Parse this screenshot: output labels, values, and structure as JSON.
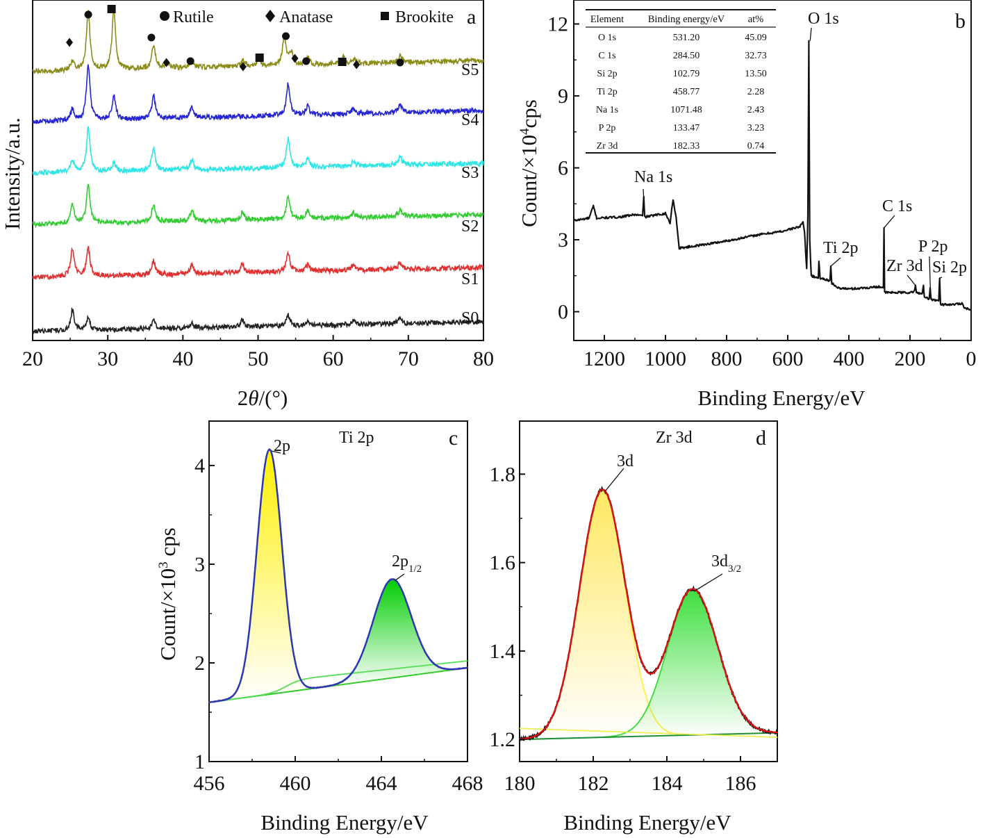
{
  "chart_data": [
    {
      "panel": "a",
      "type": "line",
      "xlabel": "2θ/(°)",
      "ylabel": "Intensity/a.u.",
      "xlim": [
        20,
        80
      ],
      "xticks": [
        20,
        30,
        40,
        50,
        60,
        70,
        80
      ],
      "y_ticks_visible": false,
      "legend": {
        "placement": "top",
        "items": [
          {
            "marker": "circle",
            "label": "Rutile"
          },
          {
            "marker": "diamond",
            "label": "Anatase"
          },
          {
            "marker": "square",
            "label": "Brookite"
          }
        ]
      },
      "series": [
        {
          "name": "S0",
          "color": "#222222",
          "peaks": [
            {
              "x": 25.3,
              "h": 30
            },
            {
              "x": 27.4,
              "h": 18
            },
            {
              "x": 36.1,
              "h": 12
            },
            {
              "x": 41.2,
              "h": 7
            },
            {
              "x": 47.9,
              "h": 11
            },
            {
              "x": 54.0,
              "h": 16
            },
            {
              "x": 56.6,
              "h": 6
            },
            {
              "x": 62.7,
              "h": 6
            },
            {
              "x": 68.9,
              "h": 7
            }
          ]
        },
        {
          "name": "S1",
          "color": "#e03030",
          "peaks": [
            {
              "x": 25.3,
              "h": 40
            },
            {
              "x": 27.4,
              "h": 40
            },
            {
              "x": 36.1,
              "h": 20
            },
            {
              "x": 41.2,
              "h": 13
            },
            {
              "x": 47.9,
              "h": 12
            },
            {
              "x": 54.0,
              "h": 28
            },
            {
              "x": 56.6,
              "h": 10
            },
            {
              "x": 62.7,
              "h": 8
            },
            {
              "x": 68.9,
              "h": 10
            }
          ]
        },
        {
          "name": "S2",
          "color": "#33cc33",
          "peaks": [
            {
              "x": 25.3,
              "h": 28
            },
            {
              "x": 27.4,
              "h": 55
            },
            {
              "x": 36.1,
              "h": 25
            },
            {
              "x": 41.2,
              "h": 15
            },
            {
              "x": 47.9,
              "h": 10
            },
            {
              "x": 54.0,
              "h": 33
            },
            {
              "x": 56.6,
              "h": 11
            },
            {
              "x": 62.7,
              "h": 7
            },
            {
              "x": 68.9,
              "h": 10
            }
          ]
        },
        {
          "name": "S3",
          "color": "#2ee6e6",
          "peaks": [
            {
              "x": 25.3,
              "h": 18
            },
            {
              "x": 27.4,
              "h": 65
            },
            {
              "x": 30.8,
              "h": 12
            },
            {
              "x": 36.1,
              "h": 32
            },
            {
              "x": 41.2,
              "h": 14
            },
            {
              "x": 54.0,
              "h": 42
            },
            {
              "x": 56.6,
              "h": 12
            },
            {
              "x": 62.7,
              "h": 7
            },
            {
              "x": 68.9,
              "h": 13
            }
          ]
        },
        {
          "name": "S4",
          "color": "#2525d6",
          "peaks": [
            {
              "x": 25.3,
              "h": 16
            },
            {
              "x": 27.4,
              "h": 80
            },
            {
              "x": 30.8,
              "h": 35
            },
            {
              "x": 36.1,
              "h": 32
            },
            {
              "x": 41.2,
              "h": 15
            },
            {
              "x": 54.0,
              "h": 45
            },
            {
              "x": 56.6,
              "h": 12
            },
            {
              "x": 62.7,
              "h": 7
            },
            {
              "x": 68.9,
              "h": 12
            }
          ]
        },
        {
          "name": "S5",
          "color": "#8c8c1a",
          "peaks": [
            {
              "x": 25.3,
              "h": 14
            },
            {
              "x": 27.4,
              "h": 85
            },
            {
              "x": 30.8,
              "h": 85
            },
            {
              "x": 36.1,
              "h": 35
            },
            {
              "x": 38.0,
              "h": 8
            },
            {
              "x": 41.2,
              "h": 12
            },
            {
              "x": 48.0,
              "h": 8
            },
            {
              "x": 50.1,
              "h": 10
            },
            {
              "x": 53.5,
              "h": 42
            },
            {
              "x": 54.4,
              "h": 18
            },
            {
              "x": 56.6,
              "h": 12
            },
            {
              "x": 61.4,
              "h": 10
            },
            {
              "x": 62.9,
              "h": 6
            },
            {
              "x": 68.9,
              "h": 10
            }
          ]
        }
      ],
      "phase_markers": [
        {
          "x": 24.9,
          "phase": "anatase"
        },
        {
          "x": 27.4,
          "phase": "rutile"
        },
        {
          "x": 30.5,
          "phase": "brookite"
        },
        {
          "x": 35.8,
          "phase": "rutile"
        },
        {
          "x": 37.8,
          "phase": "anatase"
        },
        {
          "x": 41.0,
          "phase": "rutile"
        },
        {
          "x": 48.0,
          "phase": "anatase"
        },
        {
          "x": 50.2,
          "phase": "brookite"
        },
        {
          "x": 53.7,
          "phase": "rutile"
        },
        {
          "x": 54.9,
          "phase": "anatase"
        },
        {
          "x": 56.4,
          "phase": "rutile"
        },
        {
          "x": 61.2,
          "phase": "brookite"
        },
        {
          "x": 63.1,
          "phase": "anatase"
        },
        {
          "x": 68.9,
          "phase": "rutile"
        }
      ]
    },
    {
      "panel": "b",
      "type": "line",
      "xlabel": "Binding Energy/eV",
      "ylabel": "Count/×10⁴cps",
      "ylabel_parts": {
        "pre": "Count/×10",
        "sup": "4",
        "post": "cps"
      },
      "xlim": [
        1300,
        0
      ],
      "ylim": [
        -1.2,
        13
      ],
      "xticks": [
        1200,
        1000,
        800,
        600,
        400,
        200,
        0
      ],
      "yticks": [
        0,
        3,
        6,
        9,
        12
      ],
      "color": "#111111",
      "series_points": [
        [
          1300,
          3.8
        ],
        [
          1250,
          3.9
        ],
        [
          1236,
          4.4
        ],
        [
          1225,
          3.9
        ],
        [
          1150,
          3.95
        ],
        [
          1100,
          4.05
        ],
        [
          1075,
          4.0
        ],
        [
          1071,
          4.8
        ],
        [
          1068,
          3.95
        ],
        [
          1000,
          4.1
        ],
        [
          985,
          3.7
        ],
        [
          975,
          4.7
        ],
        [
          965,
          3.9
        ],
        [
          955,
          2.65
        ],
        [
          900,
          2.75
        ],
        [
          800,
          2.95
        ],
        [
          700,
          3.2
        ],
        [
          620,
          3.35
        ],
        [
          560,
          3.55
        ],
        [
          550,
          3.75
        ],
        [
          545,
          3.3
        ],
        [
          538,
          1.8
        ],
        [
          534,
          4.0
        ],
        [
          531,
          11.3
        ],
        [
          528,
          3.0
        ],
        [
          523,
          1.5
        ],
        [
          500,
          1.4
        ],
        [
          498,
          2.1
        ],
        [
          494,
          1.4
        ],
        [
          462,
          1.3
        ],
        [
          459,
          1.9
        ],
        [
          456,
          1.2
        ],
        [
          440,
          1.0
        ],
        [
          400,
          0.95
        ],
        [
          340,
          1.0
        ],
        [
          300,
          1.05
        ],
        [
          287,
          1.0
        ],
        [
          285,
          3.5
        ],
        [
          283,
          0.8
        ],
        [
          250,
          0.8
        ],
        [
          190,
          0.8
        ],
        [
          185,
          0.9
        ],
        [
          182,
          1.1
        ],
        [
          179,
          0.8
        ],
        [
          160,
          0.75
        ],
        [
          156,
          1.1
        ],
        [
          153,
          0.6
        ],
        [
          137,
          0.55
        ],
        [
          134,
          1.0
        ],
        [
          131,
          0.5
        ],
        [
          106,
          0.45
        ],
        [
          103,
          1.4
        ],
        [
          100,
          0.3
        ],
        [
          60,
          0.3
        ],
        [
          30,
          0.35
        ],
        [
          20,
          0.15
        ],
        [
          10,
          0.12
        ],
        [
          0,
          0.05
        ]
      ],
      "peak_labels": [
        {
          "label": "Na 1s",
          "x": 1071.48,
          "y": 4.8
        },
        {
          "label": "O 1s",
          "x": 531.2,
          "y": 11.3
        },
        {
          "label": "Ti 2p",
          "x": 458.77,
          "y": 1.9
        },
        {
          "label": "C 1s",
          "x": 284.5,
          "y": 3.5
        },
        {
          "label": "Zr 3d",
          "x": 182.33,
          "y": 1.1
        },
        {
          "label": "P 2p",
          "x": 133.47,
          "y": 1.0
        },
        {
          "label": "Si 2p",
          "x": 102.79,
          "y": 1.4
        }
      ],
      "table": {
        "headers": [
          "Element",
          "Binding energy/eV",
          "at%"
        ],
        "rows": [
          [
            "O 1s",
            "531.20",
            "45.09"
          ],
          [
            "C 1s",
            "284.50",
            "32.73"
          ],
          [
            "Si 2p",
            "102.79",
            "13.50"
          ],
          [
            "Ti 2p",
            "458.77",
            "2.28"
          ],
          [
            "Na 1s",
            "1071.48",
            "2.43"
          ],
          [
            "P 2p",
            "133.47",
            "3.23"
          ],
          [
            "Zr 3d",
            "182.33",
            "0.74"
          ]
        ]
      }
    },
    {
      "panel": "c",
      "type": "area",
      "title": "Ti 2p",
      "xlabel": "Binding Energy/eV",
      "ylabel": "Count/×10³ cps",
      "ylabel_parts": {
        "pre": "Count/×10",
        "sup": "3",
        "post": " cps"
      },
      "xlim": [
        456,
        468
      ],
      "ylim": [
        1,
        4.45
      ],
      "xticks": [
        456,
        460,
        464,
        468
      ],
      "yticks": [
        1,
        2,
        3,
        4
      ],
      "background": {
        "x": [
          456,
          468
        ],
        "y": [
          1.6,
          1.95
        ]
      },
      "components": [
        {
          "label": "2p",
          "label_main": "2p",
          "label_sub": "",
          "center": 458.8,
          "sigma": 0.58,
          "height": 2.48,
          "color": "#ffee00"
        },
        {
          "label": "2p1/2",
          "label_main": "2p",
          "label_sub": "1/2",
          "center": 464.5,
          "sigma": 0.88,
          "height": 1.0,
          "color": "#00cc00"
        }
      ],
      "envelope_color": "#2a36b8"
    },
    {
      "panel": "d",
      "type": "area",
      "title": "Zr 3d",
      "xlabel": "Binding Energy/eV",
      "ylabel": "",
      "xlim": [
        180,
        187
      ],
      "ylim": [
        1.15,
        1.92
      ],
      "xticks": [
        180,
        182,
        184,
        186
      ],
      "yticks": [
        1.2,
        1.4,
        1.6,
        1.8
      ],
      "background": {
        "x": [
          180,
          187
        ],
        "y": [
          1.2,
          1.215
        ]
      },
      "components": [
        {
          "label": "3d",
          "label_main": "3d",
          "label_sub": "",
          "center": 182.25,
          "sigma": 0.62,
          "height": 0.56,
          "color": "#ffee44"
        },
        {
          "label": "3d3/2",
          "label_main": "3d",
          "label_sub": "3/2",
          "center": 184.7,
          "sigma": 0.68,
          "height": 0.33,
          "color": "#33dd33"
        }
      ],
      "envelope_color": "#dd1111"
    }
  ]
}
